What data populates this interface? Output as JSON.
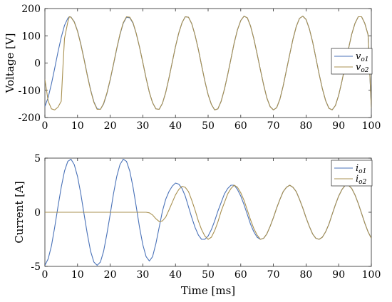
{
  "chart_data": [
    {
      "type": "line",
      "ylabel": "Voltage [V]",
      "xlabel": "",
      "xlim": [
        0,
        100
      ],
      "ylim": [
        -200,
        200
      ],
      "xticks": [
        "0",
        "10",
        "20",
        "30",
        "40",
        "50",
        "60",
        "70",
        "80",
        "90",
        "100"
      ],
      "yticks": [
        "200",
        "100",
        "0",
        "-100",
        "-200"
      ],
      "grid": false,
      "legend_position": "right",
      "series": [
        {
          "name": "v",
          "subscript": "o1",
          "color": "#4a72b8",
          "x": [
            0,
            1,
            2,
            3,
            4,
            5,
            6,
            7,
            7.5,
            8,
            9,
            10,
            11,
            12,
            13,
            14,
            15,
            16,
            17,
            18,
            19,
            20,
            21,
            22,
            23,
            24,
            25,
            26,
            27,
            28,
            29,
            30,
            31,
            32,
            33,
            34,
            35,
            36,
            37,
            38,
            39,
            40,
            41,
            42,
            43,
            44,
            45,
            46,
            47,
            48,
            49,
            50,
            51,
            52,
            53,
            54,
            55,
            56,
            57,
            58,
            59,
            60,
            61,
            62,
            63,
            64,
            65,
            66,
            67,
            68,
            69,
            70,
            71,
            72,
            73,
            74,
            75,
            76,
            77,
            78,
            79,
            80,
            81,
            82,
            83,
            84,
            85,
            86,
            87,
            88,
            89,
            90,
            91,
            92,
            93,
            94,
            95,
            96,
            97,
            98,
            99,
            100
          ],
          "y": [
            -160,
            -126,
            -76,
            -20,
            40,
            94,
            138,
            164,
            170,
            169,
            152,
            118,
            70,
            14,
            -44,
            -98,
            -142,
            -168,
            -170,
            -150,
            -112,
            -62,
            -6,
            52,
            104,
            146,
            168,
            166,
            146,
            108,
            58,
            2,
            -56,
            -108,
            -146,
            -168,
            -170,
            -148,
            -108,
            -56,
            2,
            60,
            110,
            148,
            170,
            168,
            144,
            102,
            50,
            -8,
            -66,
            -116,
            -152,
            -172,
            -168,
            -140,
            -96,
            -42,
            16,
            74,
            122,
            156,
            172,
            166,
            136,
            90,
            34,
            -24,
            -80,
            -128,
            -160,
            -172,
            -164,
            -132,
            -84,
            -26,
            32,
            88,
            134,
            164,
            172,
            160,
            126,
            78,
            20,
            -40,
            -94,
            -138,
            -166,
            -172,
            -156,
            -118,
            -66,
            -8,
            52,
            106,
            146,
            170,
            170,
            146,
            104,
            -165
          ]
        },
        {
          "name": "v",
          "subscript": "o2",
          "color": "#a89050",
          "x": [
            0,
            1,
            2,
            3,
            4,
            5,
            5.5,
            6,
            7,
            7.5,
            8,
            9,
            10,
            11,
            12,
            13,
            14,
            15,
            16,
            17,
            18,
            19,
            20,
            21,
            22,
            23,
            24,
            25,
            26,
            27,
            28,
            29,
            30,
            31,
            32,
            33,
            34,
            35,
            36,
            37,
            38,
            39,
            40,
            41,
            42,
            43,
            44,
            45,
            46,
            47,
            48,
            49,
            50,
            51,
            52,
            53,
            54,
            55,
            56,
            57,
            58,
            59,
            60,
            61,
            62,
            63,
            64,
            65,
            66,
            67,
            68,
            69,
            70,
            71,
            72,
            73,
            74,
            75,
            76,
            77,
            78,
            79,
            80,
            81,
            82,
            83,
            84,
            85,
            86,
            87,
            88,
            89,
            90,
            91,
            92,
            93,
            94,
            95,
            96,
            97,
            98,
            99,
            100
          ],
          "y": [
            -60,
            -140,
            -168,
            -172,
            -162,
            -140,
            -20,
            90,
            150,
            170,
            168,
            150,
            116,
            68,
            12,
            -46,
            -100,
            -144,
            -170,
            -170,
            -148,
            -110,
            -60,
            -4,
            54,
            106,
            148,
            170,
            168,
            148,
            108,
            58,
            2,
            -56,
            -108,
            -146,
            -168,
            -170,
            -148,
            -108,
            -56,
            2,
            60,
            110,
            148,
            170,
            168,
            144,
            102,
            50,
            -8,
            -66,
            -116,
            -152,
            -172,
            -168,
            -140,
            -96,
            -42,
            16,
            74,
            122,
            156,
            172,
            166,
            136,
            90,
            34,
            -24,
            -80,
            -128,
            -160,
            -172,
            -164,
            -132,
            -84,
            -26,
            32,
            88,
            134,
            164,
            172,
            160,
            126,
            78,
            20,
            -40,
            -94,
            -138,
            -166,
            -172,
            -156,
            -118,
            -66,
            -8,
            52,
            106,
            146,
            170,
            170,
            146,
            104,
            -165
          ]
        }
      ]
    },
    {
      "type": "line",
      "ylabel": "Current [A]",
      "xlabel": "Time [ms]",
      "xlim": [
        0,
        100
      ],
      "ylim": [
        -5,
        5
      ],
      "xticks": [
        "0",
        "10",
        "20",
        "30",
        "40",
        "50",
        "60",
        "70",
        "80",
        "90",
        "100"
      ],
      "yticks": [
        "5",
        "0",
        "-5"
      ],
      "grid": false,
      "legend_position": "top-right",
      "series": [
        {
          "name": "i",
          "subscript": "o1",
          "color": "#4a72b8",
          "x": [
            0,
            1,
            2,
            3,
            4,
            5,
            6,
            7,
            8,
            9,
            10,
            11,
            12,
            13,
            14,
            15,
            16,
            17,
            18,
            19,
            20,
            21,
            22,
            23,
            24,
            25,
            26,
            27,
            28,
            29,
            30,
            31,
            32,
            33,
            34,
            35,
            36,
            37,
            38,
            39,
            40,
            41,
            42,
            43,
            44,
            45,
            46,
            47,
            48,
            49,
            50,
            51,
            52,
            53,
            54,
            55,
            56,
            57,
            58,
            59,
            60,
            61,
            62,
            63,
            64,
            65,
            66,
            67,
            68,
            69,
            70,
            71,
            72,
            73,
            74,
            75,
            76,
            77,
            78,
            79,
            80,
            81,
            82,
            83,
            84,
            85,
            86,
            87,
            88,
            89,
            90,
            91,
            92,
            93,
            94,
            95,
            96,
            97,
            98,
            99,
            100
          ],
          "y": [
            -4.9,
            -4.3,
            -3.1,
            -1.4,
            0.5,
            2.3,
            3.8,
            4.7,
            4.9,
            4.4,
            3.3,
            1.7,
            -0.2,
            -2.0,
            -3.6,
            -4.6,
            -4.9,
            -4.6,
            -3.6,
            -2.0,
            -0.2,
            1.7,
            3.3,
            4.4,
            4.9,
            4.7,
            3.8,
            2.3,
            0.5,
            -1.4,
            -3.0,
            -4.1,
            -4.5,
            -4.1,
            -2.9,
            -1.4,
            0.1,
            1.2,
            1.9,
            2.4,
            2.7,
            2.6,
            2.2,
            1.5,
            0.5,
            -0.5,
            -1.4,
            -2.1,
            -2.5,
            -2.5,
            -2.2,
            -1.6,
            -0.8,
            0.1,
            0.9,
            1.7,
            2.2,
            2.5,
            2.5,
            2.1,
            1.5,
            0.7,
            -0.2,
            -1.1,
            -1.8,
            -2.3,
            -2.5,
            -2.4,
            -2.0,
            -1.3,
            -0.5,
            0.4,
            1.2,
            1.9,
            2.3,
            2.5,
            2.3,
            1.9,
            1.2,
            0.4,
            -0.5,
            -1.3,
            -2.0,
            -2.4,
            -2.5,
            -2.3,
            -1.8,
            -1.1,
            -0.2,
            0.7,
            1.5,
            2.1,
            2.5,
            2.5,
            2.2,
            1.6,
            0.8,
            -0.1,
            -1.0,
            -1.8,
            -2.4
          ]
        },
        {
          "name": "i",
          "subscript": "o2",
          "color": "#a89050",
          "x": [
            0,
            5,
            10,
            15,
            20,
            25,
            30,
            31,
            32,
            33,
            34,
            35,
            36,
            37,
            38,
            39,
            40,
            41,
            42,
            43,
            44,
            45,
            46,
            47,
            48,
            49,
            50,
            51,
            52,
            53,
            54,
            55,
            56,
            57,
            58,
            59,
            60,
            61,
            62,
            63,
            64,
            65,
            66,
            67,
            68,
            69,
            70,
            71,
            72,
            73,
            74,
            75,
            76,
            77,
            78,
            79,
            80,
            81,
            82,
            83,
            84,
            85,
            86,
            87,
            88,
            89,
            90,
            91,
            92,
            93,
            94,
            95,
            96,
            97,
            98,
            99,
            100
          ],
          "y": [
            0,
            0,
            0,
            0,
            0,
            0,
            0,
            0,
            -0.05,
            -0.25,
            -0.6,
            -0.85,
            -0.8,
            -0.45,
            0.2,
            0.9,
            1.6,
            2.1,
            2.4,
            2.3,
            1.9,
            1.1,
            0.2,
            -0.8,
            -1.6,
            -2.2,
            -2.5,
            -2.3,
            -1.7,
            -0.9,
            0.1,
            0.9,
            1.7,
            2.2,
            2.5,
            2.3,
            1.8,
            1.1,
            0.2,
            -0.7,
            -1.5,
            -2.1,
            -2.5,
            -2.4,
            -2.0,
            -1.3,
            -0.5,
            0.4,
            1.2,
            1.9,
            2.3,
            2.5,
            2.3,
            1.9,
            1.2,
            0.4,
            -0.5,
            -1.3,
            -2.0,
            -2.4,
            -2.5,
            -2.3,
            -1.8,
            -1.1,
            -0.2,
            0.7,
            1.5,
            2.1,
            2.5,
            2.5,
            2.2,
            1.6,
            0.8,
            -0.1,
            -1.0,
            -1.8,
            -2.4
          ]
        }
      ]
    }
  ]
}
